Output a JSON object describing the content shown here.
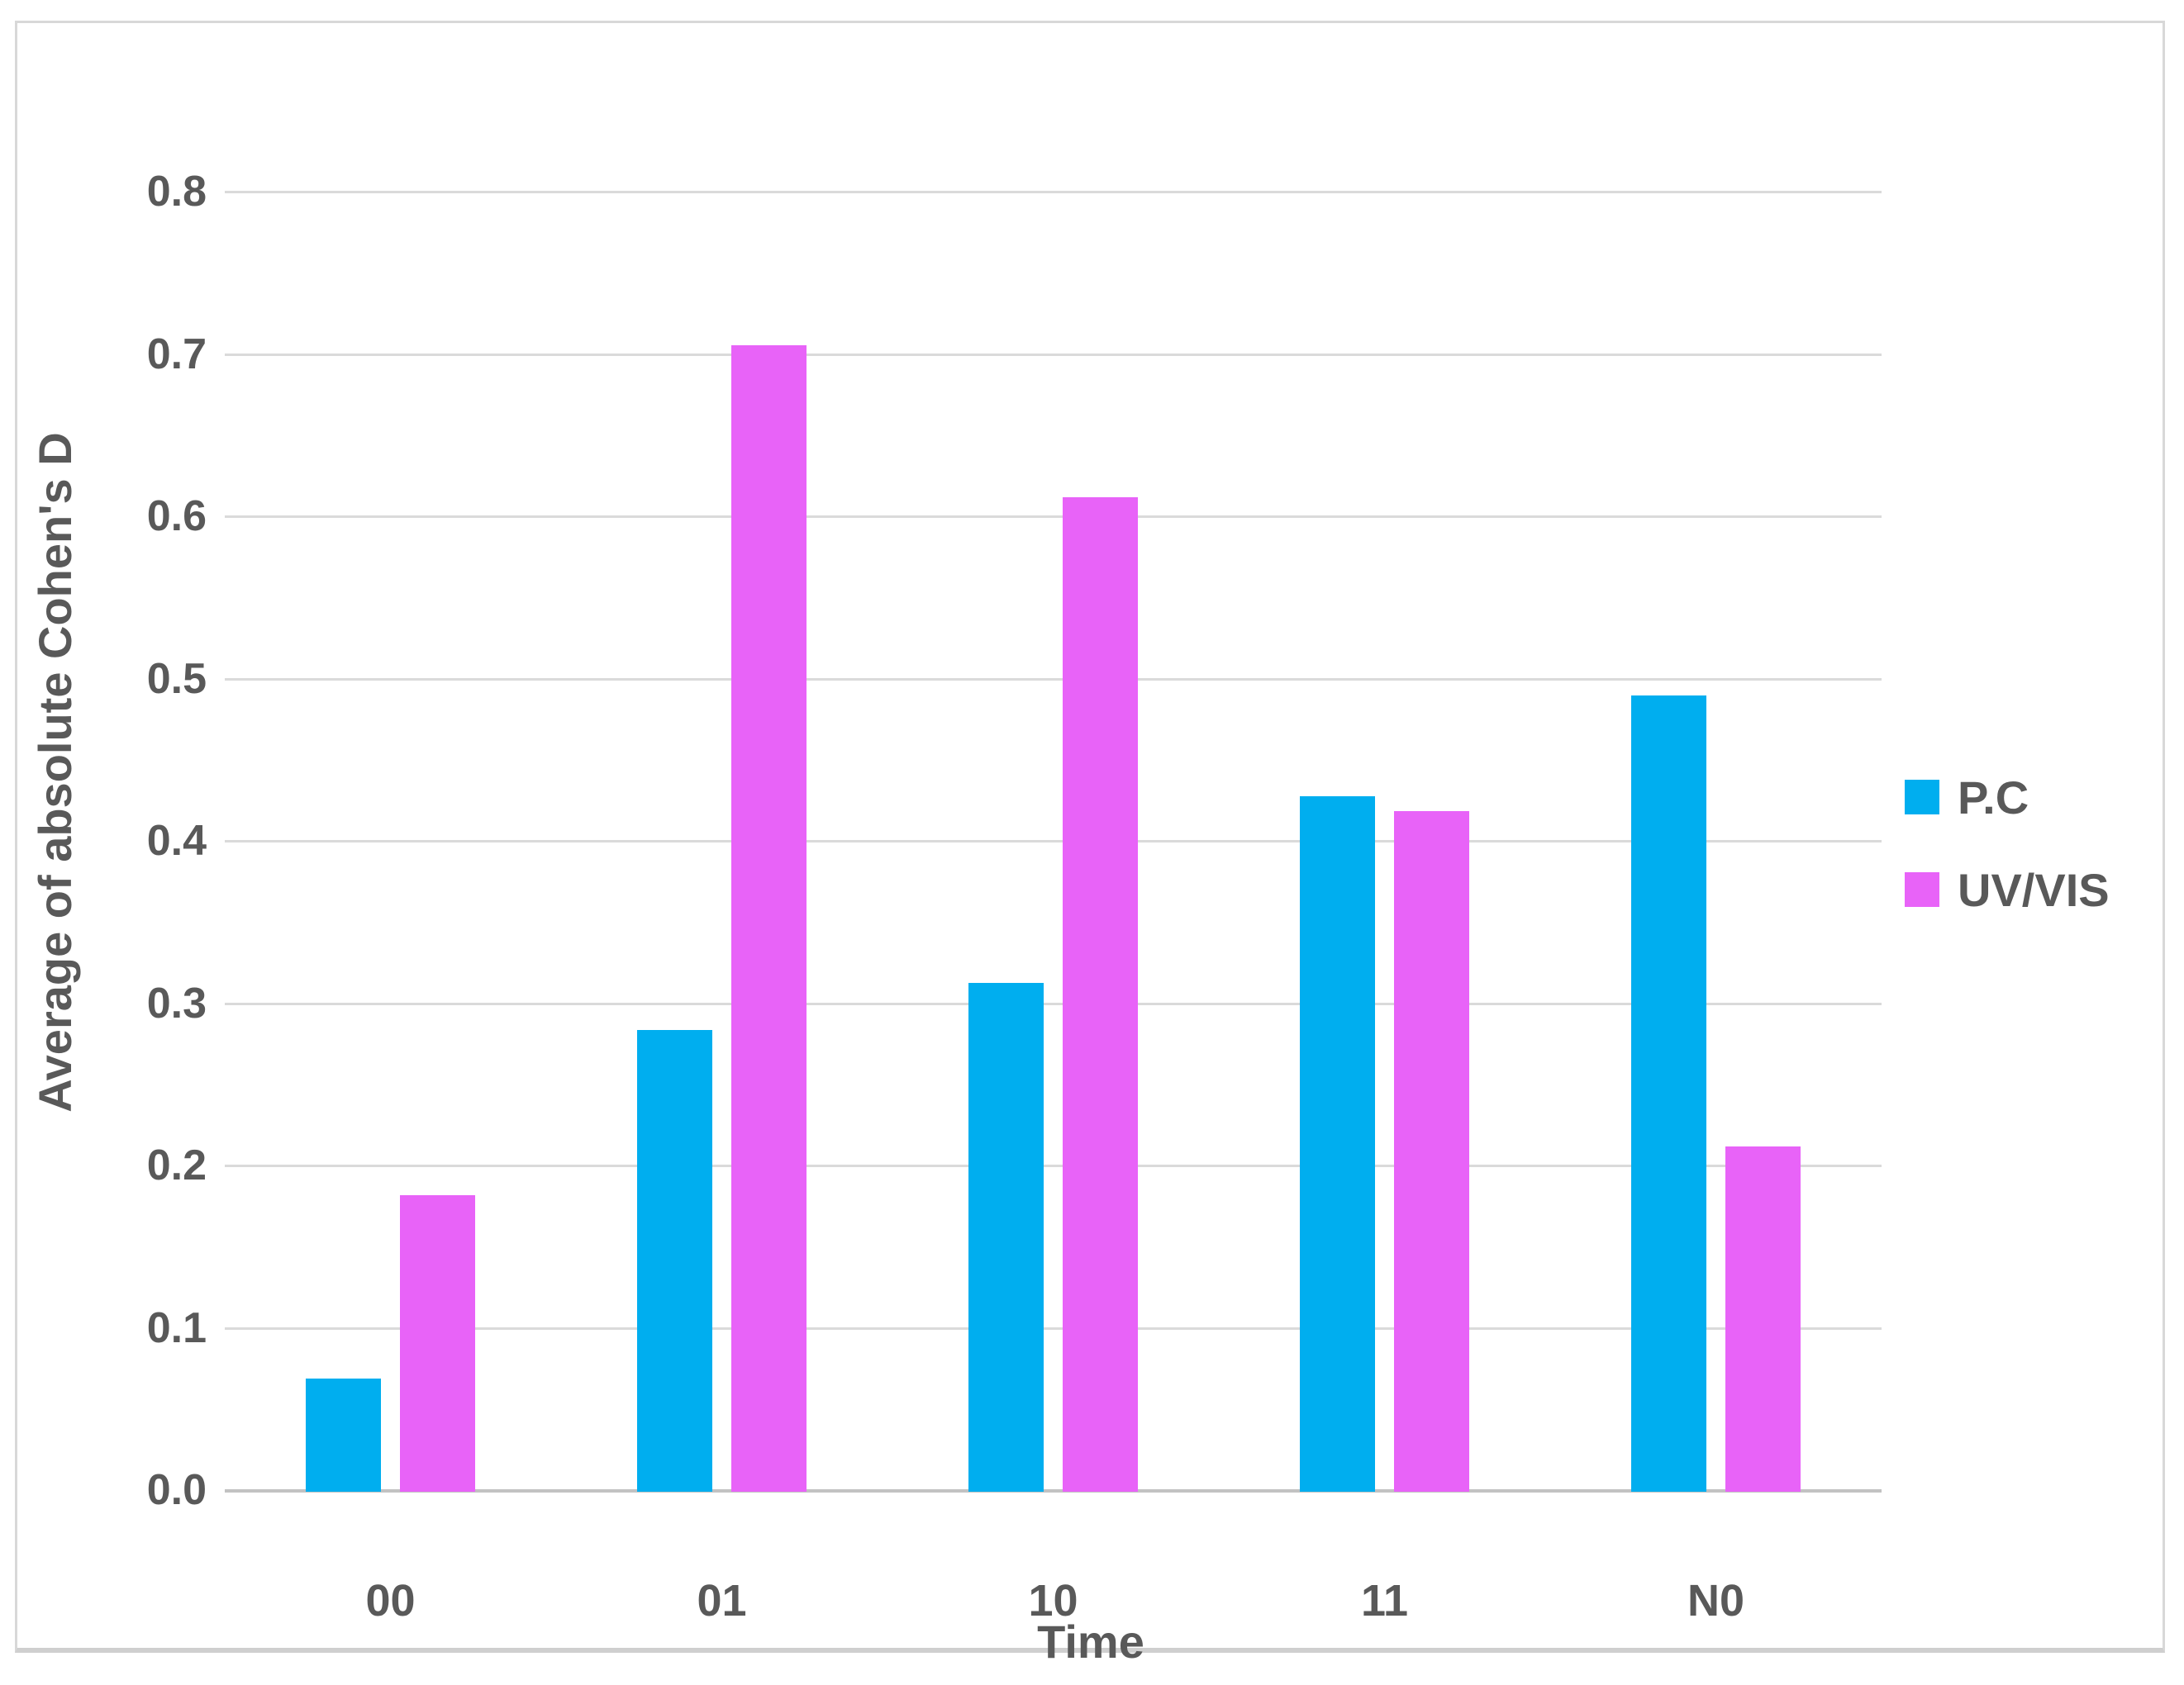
{
  "chart_data": {
    "type": "bar",
    "title": "",
    "categories": [
      "00",
      "01",
      "10",
      "11",
      "N0"
    ],
    "series": [
      {
        "name": "P.C",
        "color": "#00aeef",
        "values": [
          0.068,
          0.283,
          0.312,
          0.427,
          0.489
        ]
      },
      {
        "name": "UV/VIS",
        "color": "#e863f8",
        "values": [
          0.181,
          0.705,
          0.611,
          0.418,
          0.211
        ]
      }
    ],
    "xlabel": "Time",
    "ylabel": "Average of  absolute Cohen's D",
    "ylim": [
      0,
      0.8
    ],
    "ytick_step": 0.1,
    "y_tick_labels": [
      "0.0",
      "0.1",
      "0.2",
      "0.3",
      "0.4",
      "0.5",
      "0.6",
      "0.7",
      "0.8"
    ],
    "grid": true,
    "legend_position": "right"
  },
  "colors": {
    "tick_text": "#595959",
    "gridline": "#dadada",
    "axis_line": "#c2c2c2",
    "frame_border": "#d8d8d8",
    "background": "#ffffff"
  },
  "legend": {
    "items": [
      {
        "label": "P.C",
        "color": "#00aeef"
      },
      {
        "label": "UV/VIS",
        "color": "#e863f8"
      }
    ]
  }
}
